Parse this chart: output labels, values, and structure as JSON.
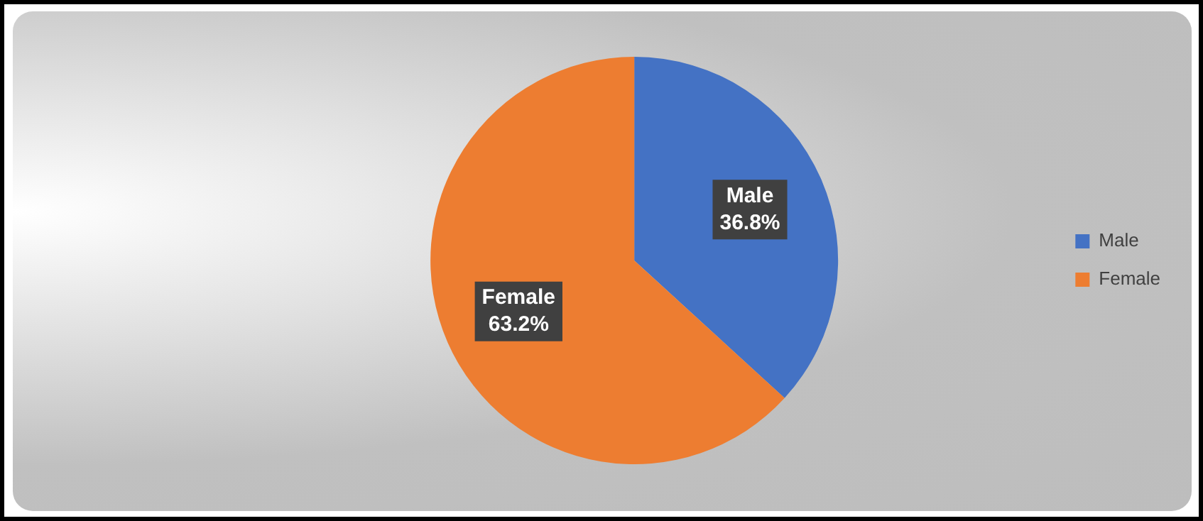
{
  "chart_data": {
    "type": "pie",
    "categories": [
      "Male",
      "Female"
    ],
    "values": [
      36.8,
      63.2
    ],
    "colors": [
      "#4472c4",
      "#ed7d31"
    ],
    "value_labels": [
      "36.8%",
      "63.2%"
    ],
    "legend": "right"
  }
}
